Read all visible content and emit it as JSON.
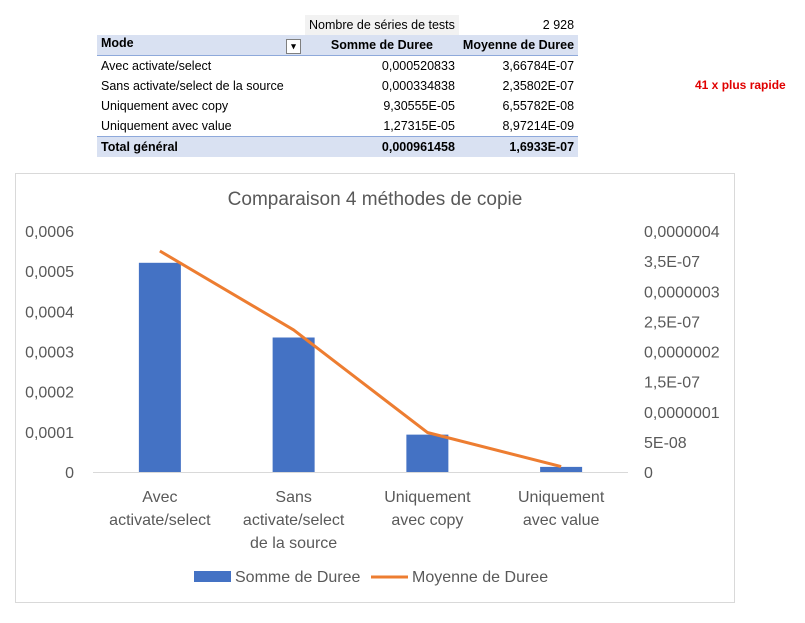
{
  "pivot": {
    "meta_label": "Nombre de séries de tests",
    "meta_value": "2 928",
    "headers": [
      "Mode",
      "Somme de Duree",
      "Moyenne de Duree"
    ],
    "rows": [
      {
        "mode": "Avec activate/select",
        "somme": "0,000520833",
        "moyenne": "3,66784E-07"
      },
      {
        "mode": "Sans activate/select de la source",
        "somme": "0,000334838",
        "moyenne": "2,35802E-07"
      },
      {
        "mode": "Uniquement avec copy",
        "somme": "9,30555E-05",
        "moyenne": "6,55782E-08"
      },
      {
        "mode": "Uniquement avec value",
        "somme": "1,27315E-05",
        "moyenne": "8,97214E-09"
      }
    ],
    "total": {
      "mode": "Total général",
      "somme": "0,000961458",
      "moyenne": "1,6933E-07"
    },
    "filter_icon": "sort-filter-icon"
  },
  "note": "41 x plus rapide",
  "colors": {
    "bar": "#4472c4",
    "line": "#ed7d31",
    "header_bg": "#d9e1f2",
    "note": "#e00000"
  },
  "chart_data": {
    "type": "bar",
    "title": "Comparaison 4 méthodes de copie",
    "categories": [
      [
        "Avec",
        "activate/select"
      ],
      [
        "Sans",
        "activate/select",
        "de la source"
      ],
      [
        "Uniquement",
        "avec copy"
      ],
      [
        "Uniquement",
        "avec value"
      ]
    ],
    "series": [
      {
        "name": "Somme de Duree",
        "type": "bar",
        "axis": "left",
        "values": [
          0.000520833,
          0.000334838,
          9.30555e-05,
          1.27315e-05
        ]
      },
      {
        "name": "Moyenne de Duree",
        "type": "line",
        "axis": "right",
        "values": [
          3.66784e-07,
          2.35802e-07,
          6.55782e-08,
          8.97214e-09
        ]
      }
    ],
    "y_left": {
      "min": 0,
      "max": 0.0006,
      "ticks": [
        0,
        0.0001,
        0.0002,
        0.0003,
        0.0004,
        0.0005,
        0.0006
      ],
      "tick_labels": [
        "0",
        "0,0001",
        "0,0002",
        "0,0003",
        "0,0004",
        "0,0005",
        "0,0006"
      ]
    },
    "y_right": {
      "min": 0,
      "max": 4e-07,
      "ticks": [
        0,
        5e-08,
        1e-07,
        1.5e-07,
        2e-07,
        2.5e-07,
        3e-07,
        3.5e-07,
        4e-07
      ],
      "tick_labels": [
        "0",
        "5E-08",
        "0,0000001",
        "1,5E-07",
        "0,0000002",
        "2,5E-07",
        "0,0000003",
        "3,5E-07",
        "0,0000004"
      ]
    },
    "grid": false,
    "legend": "bottom"
  }
}
